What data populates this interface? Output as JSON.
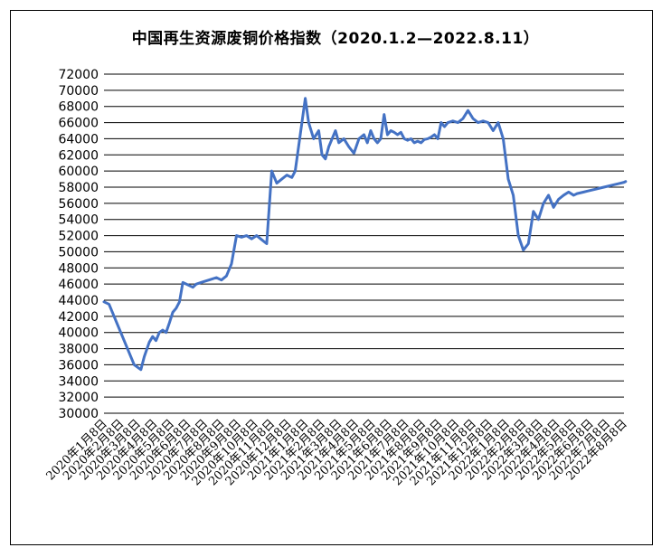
{
  "chart_data": {
    "type": "line",
    "title": "中国再生资源废铜价格指数（2020.1.2—2022.8.11）",
    "xlabel": "",
    "ylabel": "",
    "ylim": [
      30000,
      72000
    ],
    "yticks": [
      30000,
      32000,
      34000,
      36000,
      38000,
      40000,
      42000,
      44000,
      46000,
      48000,
      50000,
      52000,
      54000,
      56000,
      58000,
      60000,
      62000,
      64000,
      66000,
      68000,
      70000,
      72000
    ],
    "grid": true,
    "legend": "none",
    "line_color": "#4472C4",
    "categories": [
      "2020年1月8日",
      "2020年2月8日",
      "2020年3月8日",
      "2020年4月8日",
      "2020年5月8日",
      "2020年6月8日",
      "2020年7月8日",
      "2020年8月8日",
      "2020年9月8日",
      "2020年10月8日",
      "2020年11月8日",
      "2020年12月8日",
      "2021年1月8日",
      "2021年2月8日",
      "2021年3月8日",
      "2021年4月8日",
      "2021年5月8日",
      "2021年6月8日",
      "2021年7月8日",
      "2021年8月8日",
      "2021年9月8日",
      "2021年10月8日",
      "2021年11月8日",
      "2021年12月8日",
      "2022年1月8日",
      "2022年2月8日",
      "2022年3月8日",
      "2022年4月8日",
      "2022年5月8日",
      "2022年6月8日",
      "2022年7月8日",
      "2022年8月8日"
    ],
    "series": [
      {
        "x": [
          0,
          0.3,
          0.6,
          1.0,
          1.4,
          1.8,
          2.2,
          2.4,
          2.7,
          2.9,
          3.1,
          3.3,
          3.5,
          3.7,
          3.9,
          4.1,
          4.3,
          4.5,
          4.7,
          4.9,
          5.1,
          5.3,
          5.5,
          5.8,
          6.1,
          6.4,
          6.7,
          7.0,
          7.3,
          7.6,
          7.9,
          8.2,
          8.5,
          8.8,
          9.1,
          9.4,
          9.7,
          10.0,
          10.3,
          10.6,
          10.9,
          11.2,
          11.4,
          11.6,
          11.8,
          12.0,
          12.2,
          12.5,
          12.8,
          13.0,
          13.2,
          13.4,
          13.6,
          13.8,
          14.0,
          14.3,
          14.6,
          14.9,
          15.2,
          15.5,
          15.7,
          15.9,
          16.1,
          16.3,
          16.5,
          16.7,
          16.9,
          17.1,
          17.3,
          17.5,
          17.7,
          17.9,
          18.1,
          18.3,
          18.5,
          18.7,
          18.9,
          19.1,
          19.3,
          19.5,
          19.7,
          19.9,
          20.1,
          20.3,
          20.5,
          20.8,
          21.1,
          21.4,
          21.7,
          22.0,
          22.3,
          22.6,
          22.9,
          23.2,
          23.5,
          23.8,
          24.1,
          24.4,
          24.7,
          25.0,
          25.3,
          25.6,
          25.9,
          26.2,
          26.5,
          26.8,
          27.1,
          27.4,
          27.7,
          28.0,
          28.2,
          28.4,
          28.6,
          28.8,
          29.0,
          29.2,
          29.4,
          29.6,
          29.8,
          30.0,
          30.2,
          30.4,
          30.6,
          30.8,
          31.0,
          31.1
        ],
        "values": [
          43800,
          43500,
          42000,
          40000,
          38000,
          36000,
          35400,
          37000,
          38800,
          39500,
          39000,
          40000,
          40300,
          40000,
          41200,
          42500,
          43000,
          43800,
          46200,
          46000,
          45800,
          45600,
          46000,
          46200,
          46400,
          46600,
          46800,
          46500,
          47000,
          48500,
          52000,
          51800,
          52000,
          51600,
          52000,
          51500,
          51000,
          60000,
          58500,
          59000,
          59500,
          59200,
          60000,
          63000,
          66000,
          69000,
          66000,
          64000,
          65000,
          62000,
          61500,
          63000,
          64000,
          65000,
          63500,
          64000,
          63000,
          62200,
          64000,
          64500,
          63500,
          65000,
          64000,
          63500,
          64000,
          67000,
          64500,
          65000,
          64800,
          64500,
          64800,
          64000,
          63800,
          64000,
          63500,
          63700,
          63500,
          63900,
          64000,
          64200,
          64500,
          64000,
          66000,
          65500,
          66000,
          66200,
          66000,
          66500,
          67500,
          66500,
          66000,
          66200,
          66000,
          65000,
          66000,
          64000,
          59000,
          57000,
          52000,
          50200,
          51000,
          55000,
          54000,
          56000,
          57000,
          55500,
          56500,
          57000,
          57400,
          57000,
          57200,
          57300,
          57400,
          57500,
          57600,
          57700,
          57800,
          57900,
          58000,
          58100,
          58200,
          58300,
          58400,
          58500,
          58600,
          58700
        ]
      }
    ]
  }
}
